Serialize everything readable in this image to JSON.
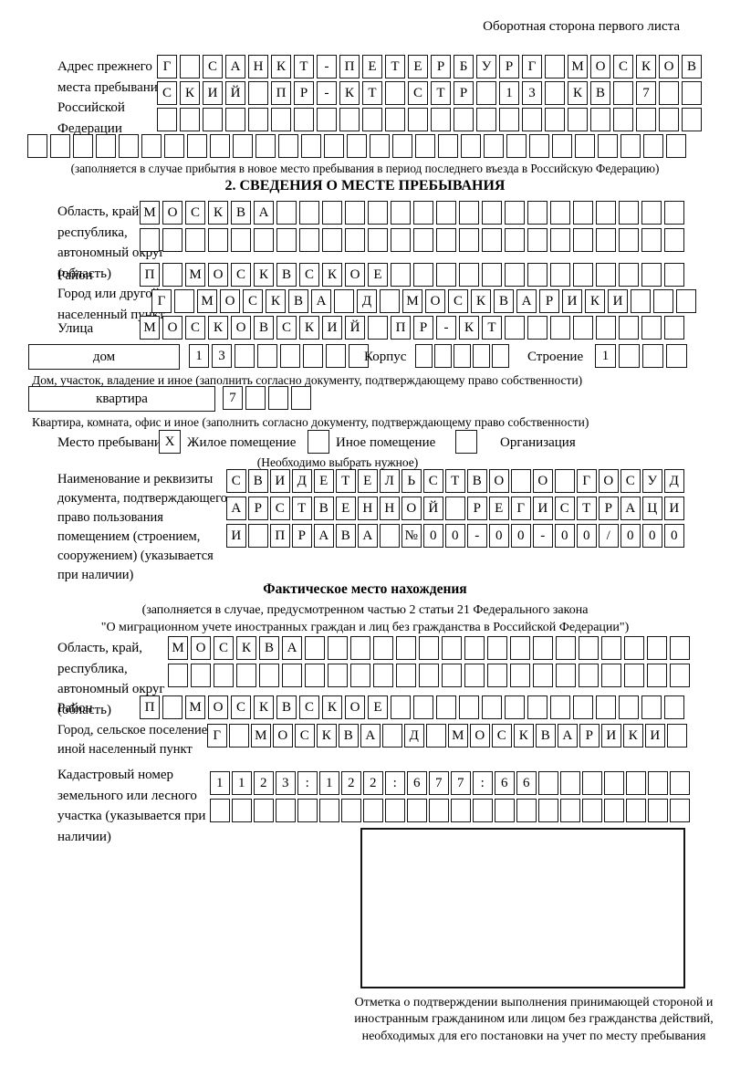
{
  "header": {
    "note": "Оборотная сторона первого листа"
  },
  "prev_address": {
    "label": "Адрес прежнего места пребывания в Российской Федерации",
    "row1": {
      "text": "Г САНКТ-ПЕТЕРБУРГ МОСКОВ",
      "cells": 24
    },
    "row2": {
      "text": "СКИЙ ПР-КТ СТР 13 КВ 7",
      "cells": 24
    },
    "row3": {
      "text": "",
      "cells": 24
    },
    "row4": {
      "text": "",
      "cells": 29
    },
    "note": "(заполняется в случае прибытия в новое место пребывания в период последнего въезда в Российскую Федерацию)"
  },
  "section2": {
    "title": "2. СВЕДЕНИЯ О МЕСТЕ ПРЕБЫВАНИЯ",
    "region": {
      "label": "Область, край, республика, автономный округ (область)",
      "row1": {
        "text": "МОСКВА",
        "cells": 24
      },
      "row2": {
        "text": "",
        "cells": 24
      }
    },
    "district": {
      "label": "Район",
      "row": {
        "text": "П МОСКВСКОЕ",
        "cells": 24
      }
    },
    "city": {
      "label": "Город или другой населенный пункт",
      "row": {
        "text": "Г МОСКВА Д МОСКВАРИКИ",
        "cells": 24
      }
    },
    "street": {
      "label": "Улица",
      "row": {
        "text": "МОСКОВСКИЙ ПР-КТ",
        "cells": 24
      }
    },
    "house": {
      "type_label": "дом",
      "number": {
        "text": "13",
        "cells": 8
      },
      "korpus_label": "Корпус",
      "korpus": {
        "text": "",
        "cells": 5
      },
      "stroenie_label": "Строение",
      "stroenie": {
        "text": "1",
        "cells": 4
      },
      "caption": "Дом, участок, владение и иное (заполнить согласно документу, подтверждающему право собственности)"
    },
    "apartment": {
      "type_label": "квартира",
      "number": {
        "text": "7",
        "cells": 4
      },
      "caption": "Квартира, комната, офис и иное (заполнить согласно документу, подтверждающему право собственности)"
    },
    "stay_type": {
      "label": "Место пребывания:",
      "options": [
        {
          "label": "Жилое помещение",
          "checked": "X"
        },
        {
          "label": "Иное помещение",
          "checked": ""
        },
        {
          "label": "Организация",
          "checked": ""
        }
      ],
      "note": "(Необходимо выбрать нужное)"
    },
    "document": {
      "label": "Наименование и реквизиты документа, подтверждающего право пользования помещением (строением, сооружением) (указывается при наличии)",
      "row1": {
        "text": "СВИДЕТЕЛЬСТВО О ГОСУД",
        "cells": 21
      },
      "row2": {
        "text": "АРСТВЕННОЙ РЕГИСТРАЦИ",
        "cells": 21
      },
      "row3": {
        "text": "И ПРАВА №00-00-00/000",
        "cells": 21
      }
    }
  },
  "actual_location": {
    "title": "Фактическое место нахождения",
    "note_line1": "(заполняется в случае, предусмотренном частью 2 статьи 21 Федерального закона",
    "note_line2": "\"О миграционном учете иностранных граждан и лиц без гражданства в Российской Федерации\")",
    "region": {
      "label": "Область, край, республика, автономный округ (область)",
      "row1": {
        "text": "МОСКВА",
        "cells": 23
      },
      "row2": {
        "text": "",
        "cells": 23
      }
    },
    "district": {
      "label": "Район",
      "row": {
        "text": "П МОСКВСКОЕ",
        "cells": 24
      }
    },
    "city": {
      "label": "Город, сельское поселение, иной населенный пункт",
      "row": {
        "text": "Г МОСКВА Д МОСКВАРИКИ",
        "cells": 22
      }
    },
    "cadastre": {
      "label": "Кадастровый номер земельного или лесного участка (указывается при наличии)",
      "row1": {
        "text": "1123:122:677:66",
        "cells": 22
      },
      "row2": {
        "text": "",
        "cells": 22
      }
    }
  },
  "confirmation": {
    "caption": "Отметка о подтверждении выполнения принимающей стороной и иностранным гражданином или лицом без гражданства действий, необходимых для его постановки на учет по месту пребывания"
  }
}
